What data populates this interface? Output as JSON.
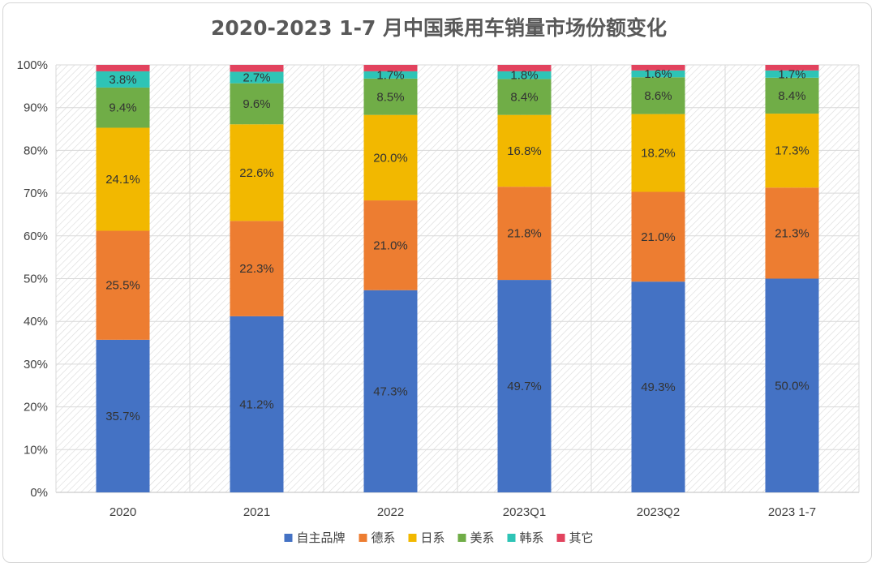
{
  "chart_data": {
    "type": "bar",
    "stacked": true,
    "title": "2020-2023 1-7 月中国乘用车销量市场份额变化",
    "categories": [
      "2020",
      "2021",
      "2022",
      "2023Q1",
      "2023Q2",
      "2023 1-7"
    ],
    "ylim": [
      0,
      100
    ],
    "y_ticks": [
      "0%",
      "10%",
      "20%",
      "30%",
      "40%",
      "50%",
      "60%",
      "70%",
      "80%",
      "90%",
      "100%"
    ],
    "grid": true,
    "legend_position": "bottom",
    "series": [
      {
        "name": "自主品牌",
        "color": "#4472c4",
        "values": [
          35.7,
          41.2,
          47.3,
          49.7,
          49.3,
          50.0
        ],
        "labels": [
          "35.7%",
          "41.2%",
          "47.3%",
          "49.7%",
          "49.3%",
          "50.0%"
        ]
      },
      {
        "name": "德系",
        "color": "#ed7d31",
        "values": [
          25.5,
          22.3,
          21.0,
          21.8,
          21.0,
          21.3
        ],
        "labels": [
          "25.5%",
          "22.3%",
          "21.0%",
          "21.8%",
          "21.0%",
          "21.3%"
        ]
      },
      {
        "name": "日系",
        "color": "#f2b800",
        "values": [
          24.1,
          22.6,
          20.0,
          16.8,
          18.2,
          17.3
        ],
        "labels": [
          "24.1%",
          "22.6%",
          "20.0%",
          "16.8%",
          "18.2%",
          "17.3%"
        ]
      },
      {
        "name": "美系",
        "color": "#70ad47",
        "values": [
          9.4,
          9.6,
          8.5,
          8.4,
          8.6,
          8.4
        ],
        "labels": [
          "9.4%",
          "9.6%",
          "8.5%",
          "8.4%",
          "8.6%",
          "8.4%"
        ]
      },
      {
        "name": "韩系",
        "color": "#2ec4b6",
        "values": [
          3.8,
          2.7,
          1.7,
          1.8,
          1.6,
          1.7
        ],
        "labels": [
          "3.8%",
          "2.7%",
          "1.7%",
          "1.8%",
          "1.6%",
          "1.7%"
        ]
      },
      {
        "name": "其它",
        "color": "#e2435e",
        "values": [
          1.5,
          1.6,
          1.5,
          1.5,
          1.3,
          1.3
        ],
        "labels": [
          "",
          "",
          "",
          "",
          "",
          ""
        ]
      }
    ]
  }
}
